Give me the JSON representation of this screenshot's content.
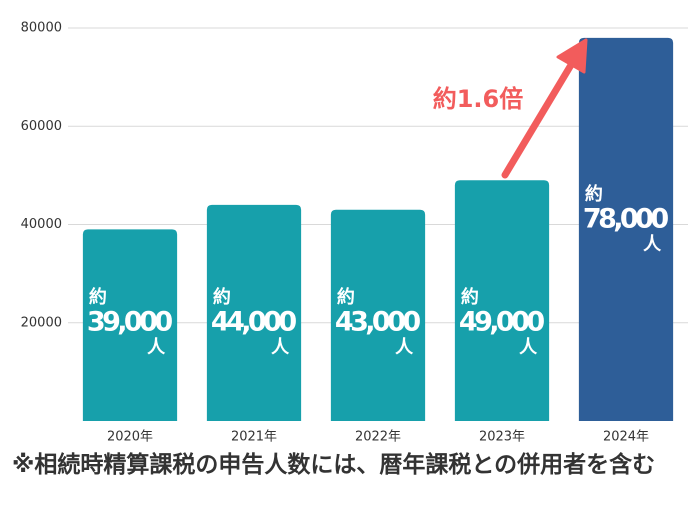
{
  "chart_data": {
    "type": "bar",
    "categories": [
      "2020年",
      "2021年",
      "2022年",
      "2023年",
      "2024年"
    ],
    "values": [
      39000,
      44000,
      43000,
      49000,
      78000
    ],
    "value_labels": [
      "39,000",
      "44,000",
      "43,000",
      "49,000",
      "78,000"
    ],
    "value_label_prefix": "約",
    "value_label_suffix": "人",
    "colors": [
      "#17a0ab",
      "#17a0ab",
      "#17a0ab",
      "#17a0ab",
      "#2e5e98"
    ],
    "ylim": [
      0,
      80000
    ],
    "yticks": [
      20000,
      40000,
      60000,
      80000
    ],
    "grid": true,
    "annotation": "約1.6倍",
    "note": "※相続時精算課税の申告人数には、暦年課税との併用者を含む"
  }
}
